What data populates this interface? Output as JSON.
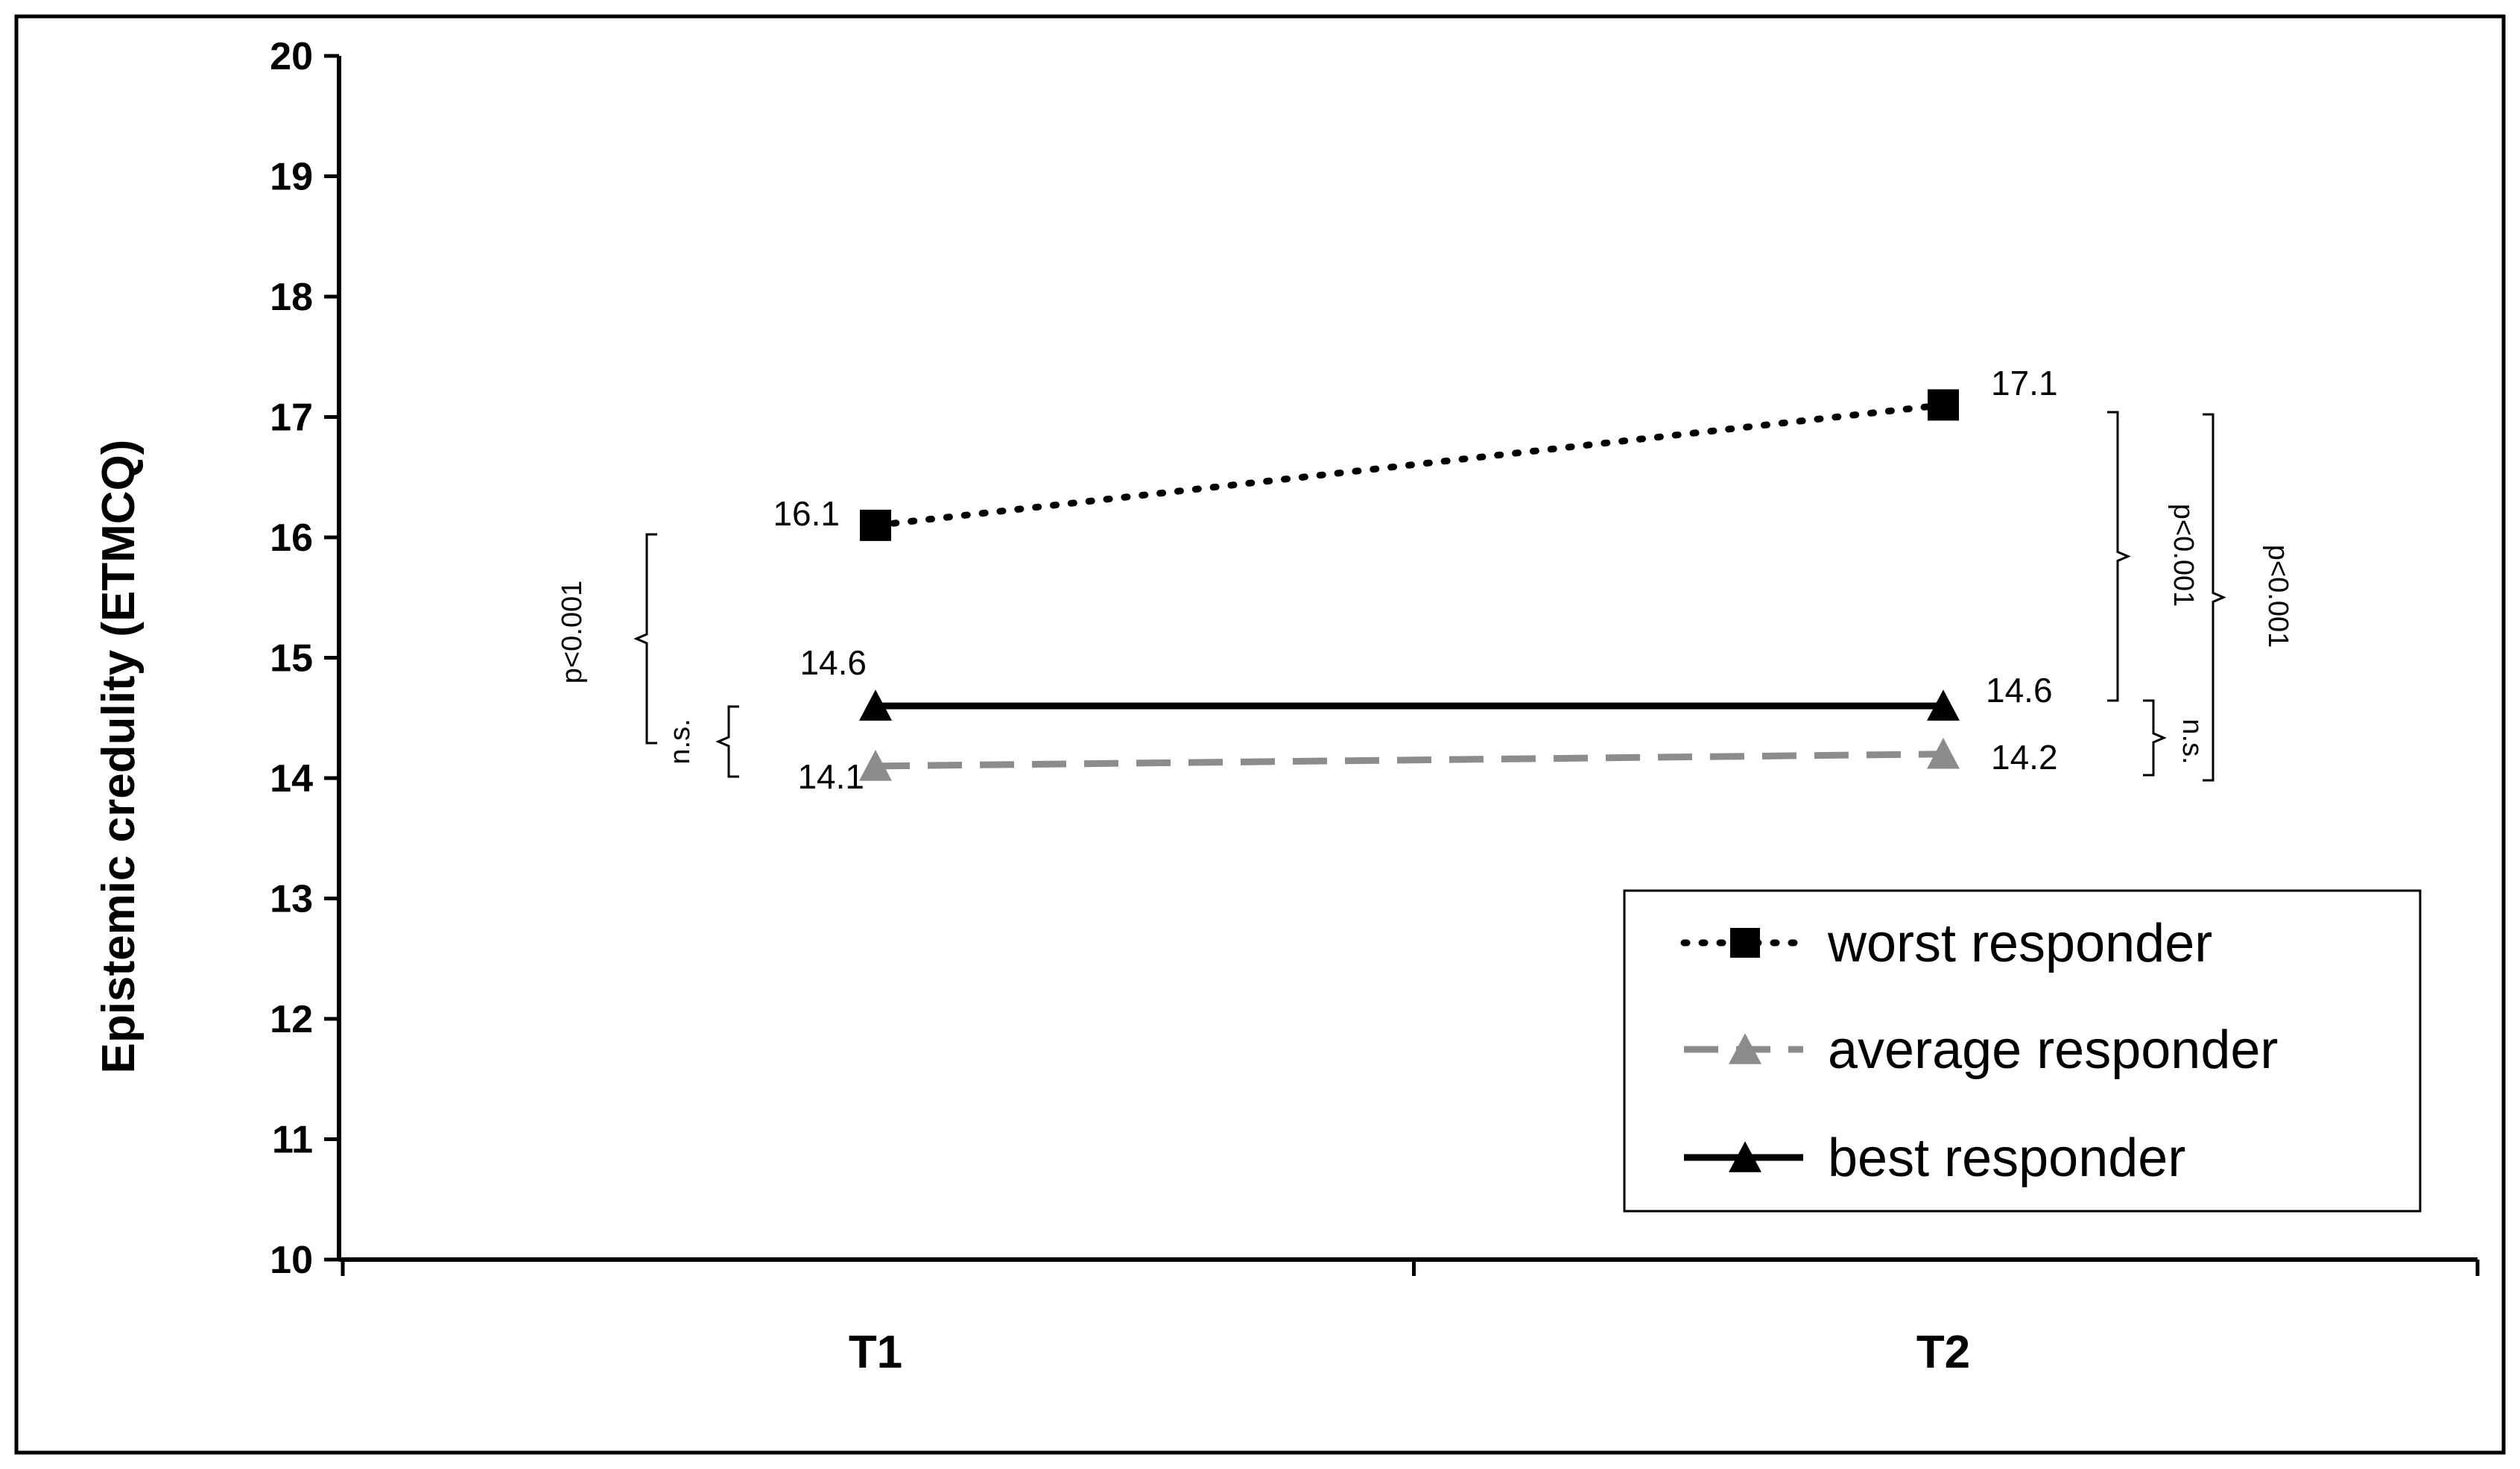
{
  "chart_data": {
    "type": "line",
    "title": "",
    "xlabel": "",
    "ylabel": "Epistemic credulity (ETMCQ)",
    "categories": [
      "T1",
      "T2"
    ],
    "ylim": [
      10,
      20
    ],
    "yticks": [
      "10",
      "11",
      "12",
      "13",
      "14",
      "15",
      "16",
      "17",
      "18",
      "19",
      "20"
    ],
    "grid": false,
    "legend_position": "bottom-right",
    "series": [
      {
        "name": "worst responder",
        "values": [
          16.1,
          17.1
        ],
        "labels": [
          "16.1",
          "17.1"
        ],
        "color": "#000000",
        "line_style": "dotted",
        "marker": "square"
      },
      {
        "name": "average responder",
        "values": [
          14.1,
          14.2
        ],
        "labels": [
          "14.1",
          "14.2"
        ],
        "color": "#8c8c8c",
        "line_style": "dashed",
        "marker": "triangle"
      },
      {
        "name": "best responder",
        "values": [
          14.6,
          14.6
        ],
        "labels": [
          "14.6",
          "14.6"
        ],
        "color": "#000000",
        "line_style": "solid",
        "marker": "triangle"
      }
    ],
    "annotations": [
      {
        "text": "p<0.001",
        "at": "T1",
        "between": [
          "worst responder",
          "average responder"
        ]
      },
      {
        "text": "n.s.",
        "at": "T1",
        "between": [
          "best responder",
          "average responder"
        ]
      },
      {
        "text": "p<0.001",
        "at": "T2",
        "between": [
          "worst responder",
          "best responder"
        ]
      },
      {
        "text": "p<0.001",
        "at": "T2",
        "between": [
          "worst responder",
          "average responder"
        ]
      },
      {
        "text": "n.s.",
        "at": "T2",
        "between": [
          "best responder",
          "average responder"
        ]
      }
    ]
  }
}
